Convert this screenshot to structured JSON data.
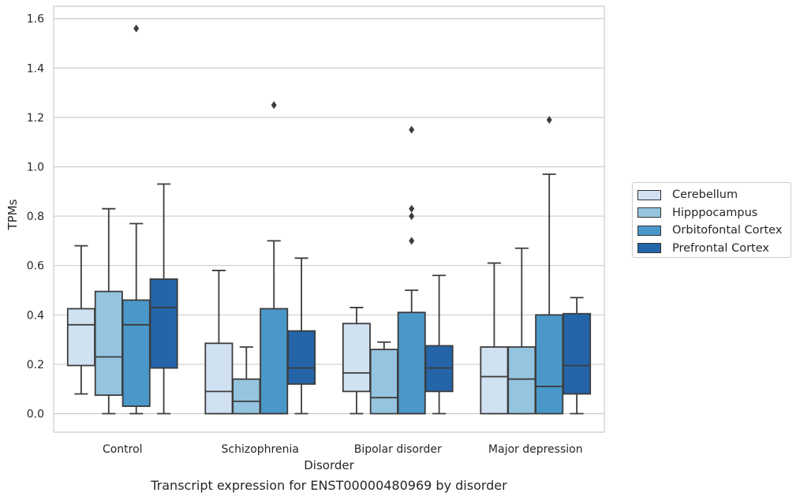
{
  "chart_data": {
    "type": "box",
    "title": "",
    "caption": "Transcript expression for ENST00000480969 by disorder",
    "xlabel": "Disorder",
    "ylabel": "TPMs",
    "ylim": [
      -0.075,
      1.65
    ],
    "yticks": [
      "0.0",
      "0.2",
      "0.4",
      "0.6",
      "0.8",
      "1.0",
      "1.2",
      "1.4",
      "1.6"
    ],
    "ytick_values": [
      0.0,
      0.2,
      0.4,
      0.6,
      0.8,
      1.0,
      1.2,
      1.4,
      1.6
    ],
    "grid": true,
    "legend_position": "right",
    "categories": [
      "Control",
      "Schizophrenia",
      "Bipolar disorder",
      "Major depression"
    ],
    "series": [
      {
        "name": "Cerebellum",
        "color": "#d0e1f2",
        "boxes": [
          {
            "whisker_low": 0.08,
            "q1": 0.195,
            "median": 0.36,
            "q3": 0.425,
            "whisker_high": 0.68,
            "outliers": []
          },
          {
            "whisker_low": 0.0,
            "q1": 0.0,
            "median": 0.09,
            "q3": 0.285,
            "whisker_high": 0.58,
            "outliers": []
          },
          {
            "whisker_low": 0.0,
            "q1": 0.09,
            "median": 0.165,
            "q3": 0.365,
            "whisker_high": 0.43,
            "outliers": []
          },
          {
            "whisker_low": 0.0,
            "q1": 0.0,
            "median": 0.15,
            "q3": 0.27,
            "whisker_high": 0.61,
            "outliers": []
          }
        ]
      },
      {
        "name": "Hipppocampus",
        "color": "#94c4df",
        "boxes": [
          {
            "whisker_low": 0.0,
            "q1": 0.075,
            "median": 0.23,
            "q3": 0.495,
            "whisker_high": 0.83,
            "outliers": []
          },
          {
            "whisker_low": 0.0,
            "q1": 0.0,
            "median": 0.05,
            "q3": 0.14,
            "whisker_high": 0.27,
            "outliers": []
          },
          {
            "whisker_low": 0.0,
            "q1": 0.0,
            "median": 0.065,
            "q3": 0.26,
            "whisker_high": 0.29,
            "outliers": []
          },
          {
            "whisker_low": 0.0,
            "q1": 0.0,
            "median": 0.14,
            "q3": 0.27,
            "whisker_high": 0.67,
            "outliers": []
          }
        ]
      },
      {
        "name": "Orbitofontal Cortex",
        "color": "#4a98c9",
        "boxes": [
          {
            "whisker_low": 0.0,
            "q1": 0.03,
            "median": 0.36,
            "q3": 0.46,
            "whisker_high": 0.77,
            "outliers": [
              1.56
            ]
          },
          {
            "whisker_low": 0.0,
            "q1": 0.0,
            "median": 0.0,
            "q3": 0.425,
            "whisker_high": 0.7,
            "outliers": [
              1.25
            ]
          },
          {
            "whisker_low": 0.0,
            "q1": 0.0,
            "median": 0.0,
            "q3": 0.41,
            "whisker_high": 0.5,
            "outliers": [
              1.15,
              0.83,
              0.8,
              0.7
            ]
          },
          {
            "whisker_low": 0.0,
            "q1": 0.0,
            "median": 0.11,
            "q3": 0.4,
            "whisker_high": 0.97,
            "outliers": [
              1.19
            ]
          }
        ]
      },
      {
        "name": "Prefrontal Cortex",
        "color": "#2464a9",
        "boxes": [
          {
            "whisker_low": 0.0,
            "q1": 0.185,
            "median": 0.43,
            "q3": 0.545,
            "whisker_high": 0.93,
            "outliers": []
          },
          {
            "whisker_low": 0.0,
            "q1": 0.12,
            "median": 0.185,
            "q3": 0.335,
            "whisker_high": 0.63,
            "outliers": []
          },
          {
            "whisker_low": 0.0,
            "q1": 0.09,
            "median": 0.185,
            "q3": 0.275,
            "whisker_high": 0.56,
            "outliers": []
          },
          {
            "whisker_low": 0.0,
            "q1": 0.08,
            "median": 0.195,
            "q3": 0.405,
            "whisker_high": 0.47,
            "outliers": []
          }
        ]
      }
    ]
  },
  "colors": {
    "grid": "#cccccc",
    "box_edge": "#3d3d3d",
    "axis": "#cccccc"
  }
}
